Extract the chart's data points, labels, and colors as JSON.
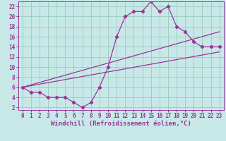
{
  "xlabel": "Windchill (Refroidissement éolien,°C)",
  "bg_color": "#c8e8e8",
  "line_color": "#993399",
  "grid_color": "#99ccbb",
  "xlim": [
    -0.5,
    23.5
  ],
  "ylim": [
    1.5,
    23
  ],
  "xticks": [
    0,
    1,
    2,
    3,
    4,
    5,
    6,
    7,
    8,
    9,
    10,
    11,
    12,
    13,
    14,
    15,
    16,
    17,
    18,
    19,
    20,
    21,
    22,
    23
  ],
  "yticks": [
    2,
    4,
    6,
    8,
    10,
    12,
    14,
    16,
    18,
    20,
    22
  ],
  "line1_x": [
    0,
    1,
    2,
    3,
    4,
    5,
    6,
    7,
    8,
    9,
    10,
    11,
    12,
    13,
    14,
    15,
    16,
    17,
    18,
    19,
    20,
    21,
    22,
    23
  ],
  "line1_y": [
    6,
    5,
    5,
    4,
    4,
    4,
    3,
    2,
    3,
    6,
    10,
    16,
    20,
    21,
    21,
    23,
    21,
    22,
    18,
    17,
    15,
    14,
    14,
    14
  ],
  "line2_x": [
    0,
    23
  ],
  "line2_y": [
    6,
    13
  ],
  "line3_x": [
    0,
    23
  ],
  "line3_y": [
    6,
    17
  ],
  "xlabel_fontsize": 6.5,
  "tick_fontsize": 5.5
}
